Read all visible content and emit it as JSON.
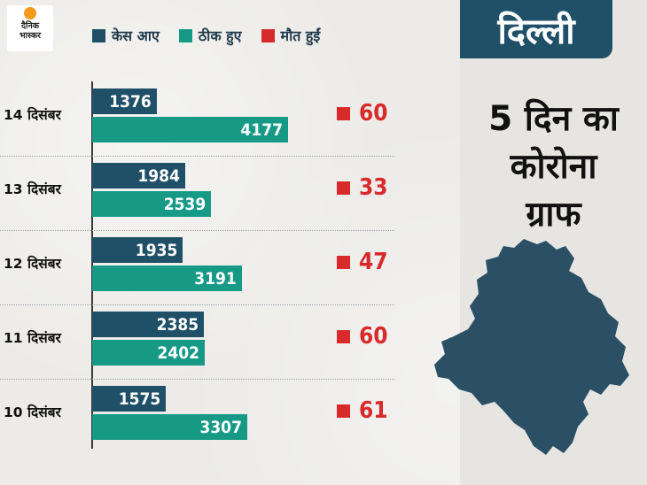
{
  "brand": {
    "logo_text_line1": "दैनिक",
    "logo_text_line2": "भास्कर"
  },
  "panel": {
    "title": "दिल्ली",
    "headline_lines": [
      "5 दिन का",
      "कोरोना",
      "ग्राफ"
    ]
  },
  "colors": {
    "cases": "#1f5068",
    "recovered": "#169a86",
    "deaths": "#d92a2b",
    "map": "#2b4f64"
  },
  "icons": {
    "map": "delhi-map-shape",
    "logo": "sun-logo"
  },
  "chart_data": {
    "type": "bar",
    "orientation": "horizontal",
    "categories": [
      "14 दिसंबर",
      "13 दिसंबर",
      "12 दिसंबर",
      "11 दिसंबर",
      "10 दिसंबर"
    ],
    "series": [
      {
        "name": "केस आए",
        "values": [
          1376,
          1984,
          1935,
          2385,
          1575
        ]
      },
      {
        "name": "ठीक हुए",
        "values": [
          4177,
          2539,
          3191,
          2402,
          3307
        ]
      },
      {
        "name": "मौत हुईं",
        "values": [
          60,
          33,
          47,
          60,
          61
        ]
      }
    ],
    "legend_position": "top",
    "grid": false
  }
}
